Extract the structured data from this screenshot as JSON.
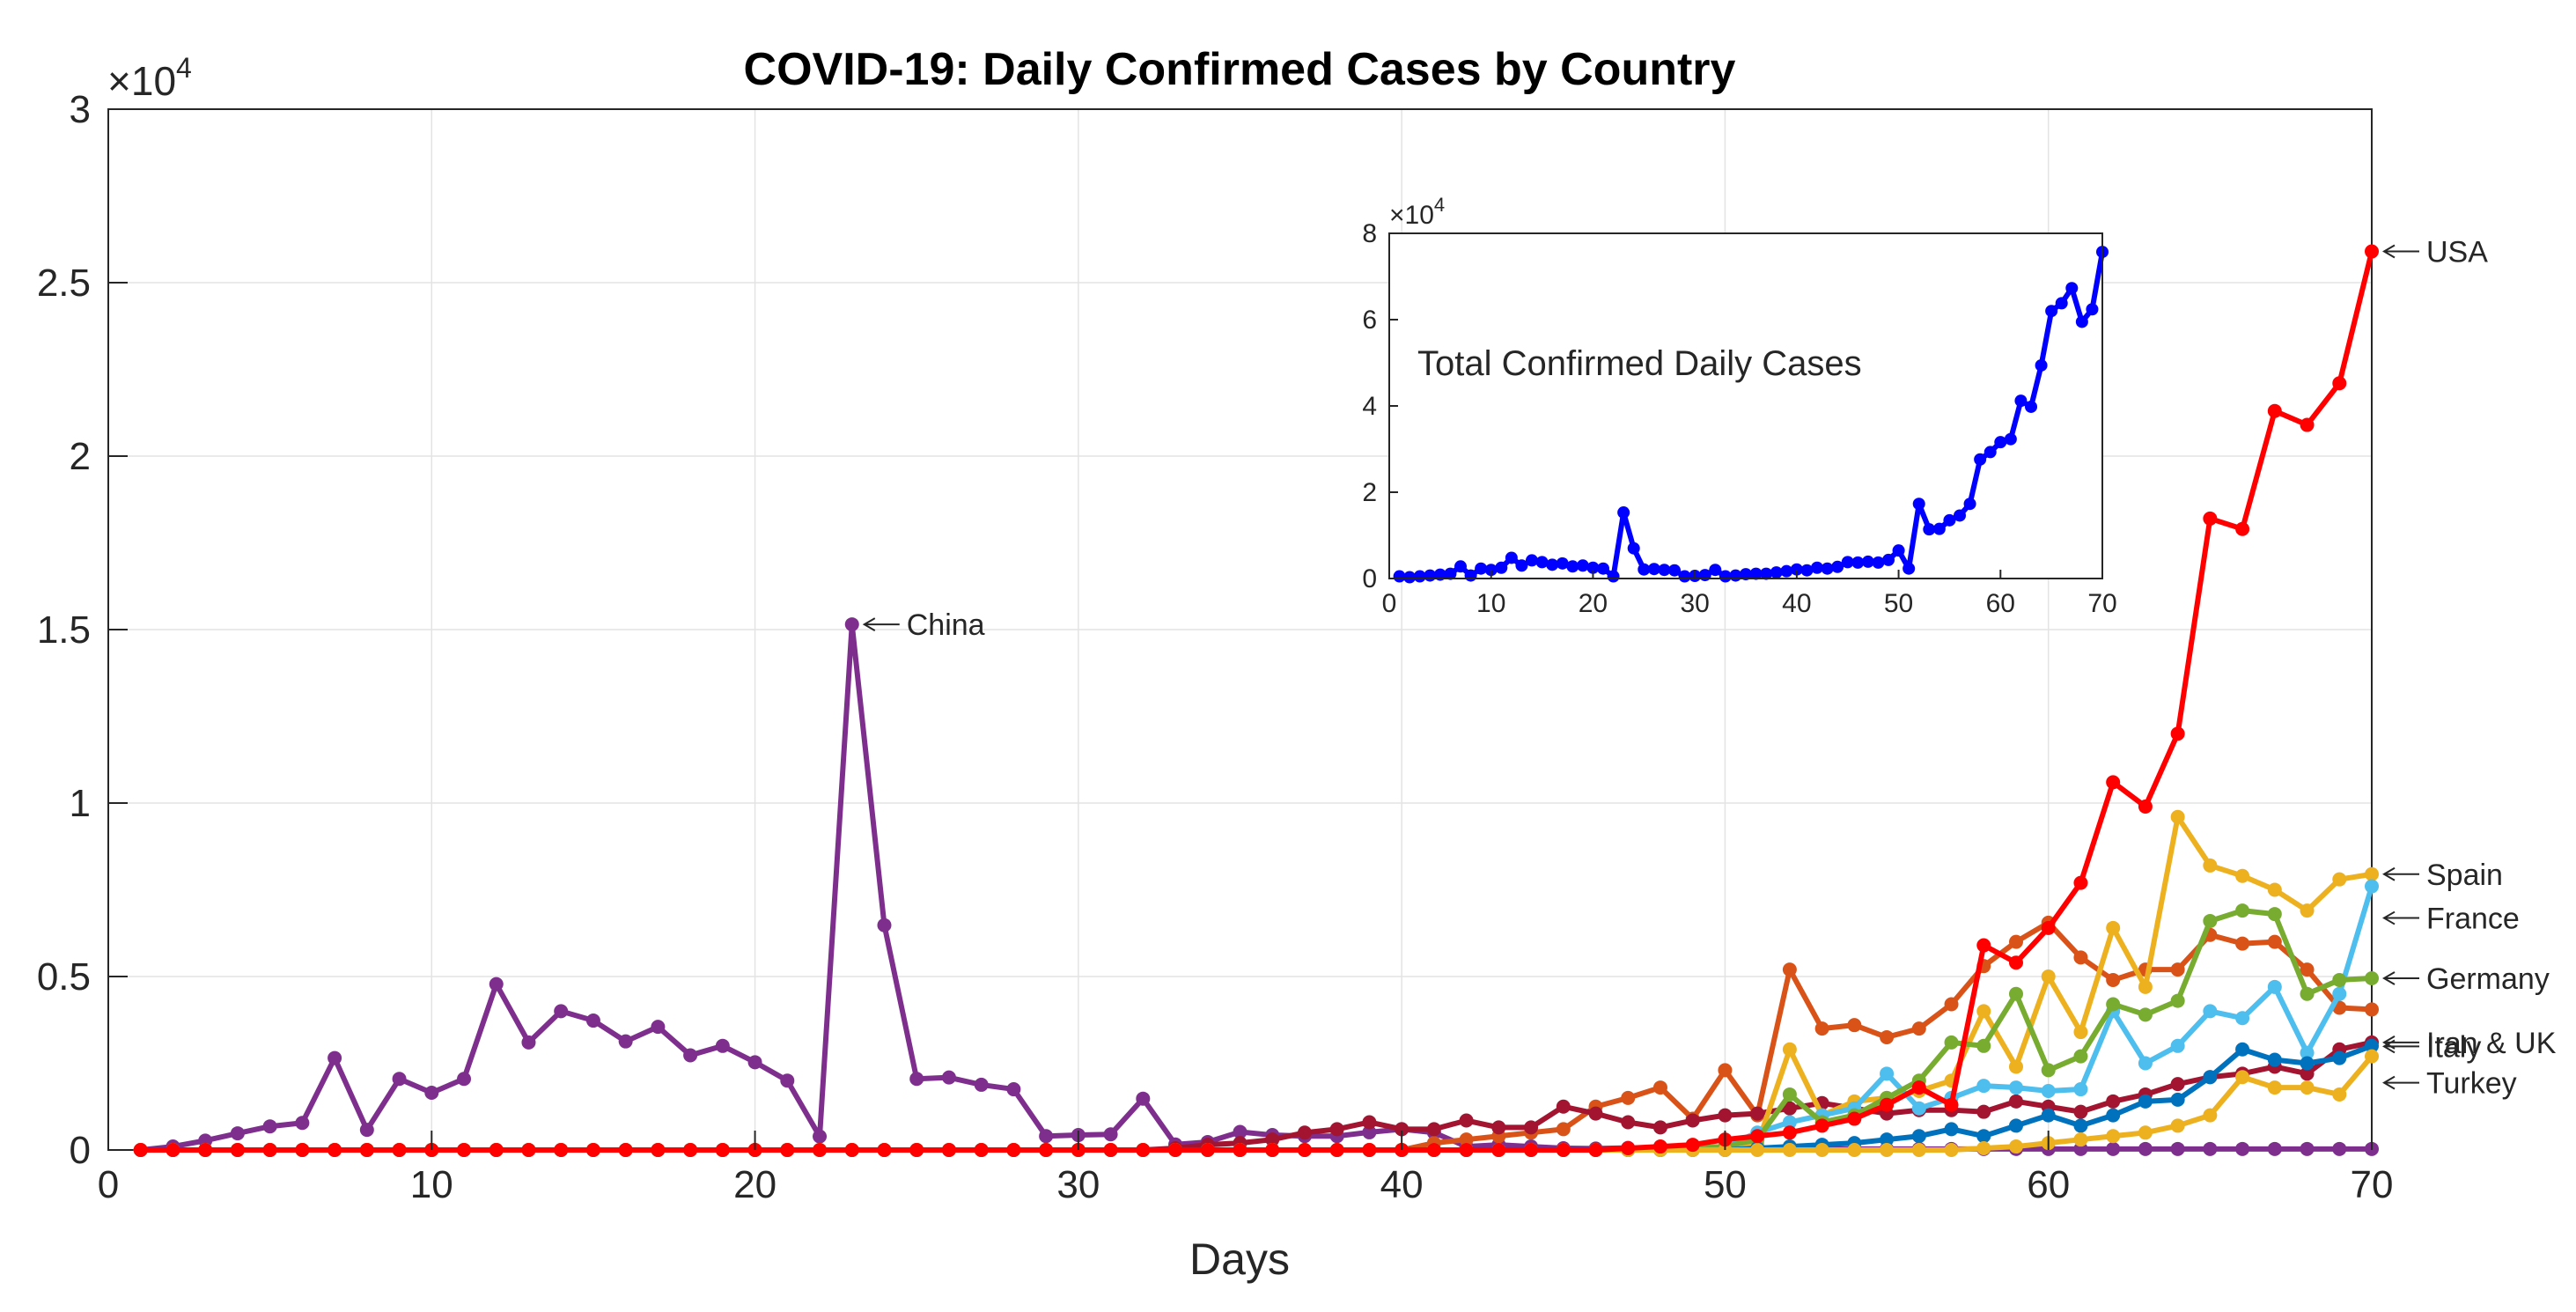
{
  "colors": {
    "China": "#7E2F8E",
    "USA": "#FF0000",
    "Spain": "#EDB120",
    "France": "#4DBEEE",
    "Germany": "#77AC30",
    "Italy": "#D95319",
    "Iran": "#A2142F",
    "UK": "#0072BD",
    "Turkey": "#EDB120",
    "inset": "#0000FF"
  },
  "chart_data": [
    {
      "type": "line",
      "title": "COVID-19: Daily Confirmed Cases by Country",
      "xlabel": "Days",
      "ylabel": "",
      "xlim": [
        0,
        70
      ],
      "ylim": [
        0,
        30000
      ],
      "x_ticks": [
        "0",
        "10",
        "20",
        "30",
        "40",
        "50",
        "60",
        "70"
      ],
      "y_ticks": [
        "0",
        "0.5",
        "1",
        "1.5",
        "2",
        "2.5",
        "3"
      ],
      "exponent_label": "×10",
      "exponent_power": "4",
      "grid": true,
      "x": [
        1,
        2,
        3,
        4,
        5,
        6,
        7,
        8,
        9,
        10,
        11,
        12,
        13,
        14,
        15,
        16,
        17,
        18,
        19,
        20,
        21,
        22,
        23,
        24,
        25,
        26,
        27,
        28,
        29,
        30,
        31,
        32,
        33,
        34,
        35,
        36,
        37,
        38,
        39,
        40,
        41,
        42,
        43,
        44,
        45,
        46,
        47,
        48,
        49,
        50,
        51,
        52,
        53,
        54,
        55,
        56,
        57,
        58,
        59,
        60,
        61,
        62,
        63,
        64,
        65,
        66,
        67,
        68,
        69,
        70
      ],
      "series": [
        {
          "name": "China",
          "label": "China",
          "color_key": "China",
          "annotate_at": 23,
          "values": [
            0,
            100,
            270,
            480,
            680,
            780,
            2650,
            580,
            2050,
            1650,
            2050,
            4780,
            3100,
            4000,
            3730,
            3130,
            3550,
            2730,
            3000,
            2530,
            2000,
            390,
            15150,
            6480,
            2050,
            2090,
            1880,
            1750,
            400,
            430,
            450,
            1480,
            160,
            230,
            520,
            430,
            400,
            400,
            510,
            600,
            500,
            100,
            150,
            100,
            50,
            40,
            60,
            50,
            30,
            30,
            30,
            30,
            30,
            30,
            30,
            30,
            30,
            30,
            30,
            30,
            30,
            30,
            30,
            30,
            30,
            30,
            30,
            30,
            30,
            30
          ]
        },
        {
          "name": "Italy",
          "label": "Italy",
          "color_key": "Italy",
          "annotate_at": 70,
          "values": [
            0,
            0,
            0,
            0,
            0,
            0,
            0,
            0,
            0,
            0,
            0,
            0,
            0,
            0,
            0,
            0,
            0,
            0,
            0,
            0,
            0,
            0,
            0,
            0,
            0,
            0,
            0,
            0,
            0,
            0,
            0,
            0,
            0,
            0,
            0,
            0,
            0,
            0,
            0,
            0,
            200,
            300,
            400,
            500,
            600,
            1250,
            1500,
            1800,
            900,
            2300,
            1000,
            5200,
            3500,
            3600,
            3250,
            3500,
            4200,
            5300,
            6000,
            6550,
            5550,
            4900,
            5200,
            5200,
            6200,
            5950,
            6000,
            5200,
            4100,
            4050
          ]
        },
        {
          "name": "Iran",
          "label": "Iran & UK",
          "color_key": "Iran",
          "annotate_at": 70,
          "values": [
            0,
            0,
            0,
            0,
            0,
            0,
            0,
            0,
            0,
            0,
            0,
            0,
            0,
            0,
            0,
            0,
            0,
            0,
            0,
            0,
            0,
            0,
            0,
            0,
            0,
            0,
            0,
            0,
            0,
            0,
            0,
            0,
            50,
            150,
            200,
            300,
            500,
            600,
            800,
            600,
            600,
            850,
            650,
            650,
            1250,
            1050,
            800,
            650,
            850,
            1000,
            1050,
            1200,
            1350,
            1200,
            1050,
            1150,
            1150,
            1100,
            1400,
            1250,
            1100,
            1400,
            1600,
            1900,
            2100,
            2200,
            2400,
            2200,
            2900,
            3100
          ]
        },
        {
          "name": "Spain",
          "label": "Spain",
          "color_key": "Spain",
          "annotate_at": 70,
          "values": [
            0,
            0,
            0,
            0,
            0,
            0,
            0,
            0,
            0,
            0,
            0,
            0,
            0,
            0,
            0,
            0,
            0,
            0,
            0,
            0,
            0,
            0,
            0,
            0,
            0,
            0,
            0,
            0,
            0,
            0,
            0,
            0,
            0,
            0,
            0,
            0,
            0,
            0,
            0,
            0,
            0,
            0,
            0,
            0,
            0,
            0,
            0,
            0,
            50,
            100,
            150,
            2900,
            1000,
            1400,
            1500,
            1700,
            2000,
            4000,
            2400,
            5000,
            3400,
            6400,
            4700,
            9600,
            8200,
            7900,
            7500,
            6900,
            7800,
            7950
          ]
        },
        {
          "name": "France",
          "label": "France",
          "color_key": "France",
          "annotate_at": 70,
          "values": [
            0,
            0,
            0,
            0,
            0,
            0,
            0,
            0,
            0,
            0,
            0,
            0,
            0,
            0,
            0,
            0,
            0,
            0,
            0,
            0,
            0,
            0,
            0,
            0,
            0,
            0,
            0,
            0,
            0,
            0,
            0,
            0,
            0,
            0,
            0,
            0,
            0,
            0,
            0,
            0,
            0,
            0,
            0,
            0,
            0,
            0,
            0,
            0,
            50,
            100,
            500,
            800,
            1000,
            1200,
            2200,
            1200,
            1500,
            1850,
            1800,
            1700,
            1750,
            4000,
            2500,
            3000,
            4000,
            3800,
            4700,
            2800,
            4500,
            7600
          ]
        },
        {
          "name": "Germany",
          "label": "Germany",
          "color_key": "Germany",
          "annotate_at": 70,
          "values": [
            0,
            0,
            0,
            0,
            0,
            0,
            0,
            0,
            0,
            0,
            0,
            0,
            0,
            0,
            0,
            0,
            0,
            0,
            0,
            0,
            0,
            0,
            0,
            0,
            0,
            0,
            0,
            0,
            0,
            0,
            0,
            0,
            0,
            0,
            0,
            0,
            0,
            0,
            0,
            0,
            0,
            0,
            0,
            0,
            0,
            0,
            0,
            0,
            50,
            100,
            300,
            1600,
            800,
            1000,
            1500,
            2000,
            3100,
            3000,
            4500,
            2300,
            2700,
            4200,
            3900,
            4300,
            6600,
            6900,
            6800,
            4500,
            4900,
            4950
          ]
        },
        {
          "name": "UK",
          "label": "",
          "color_key": "UK",
          "annotate_at": 70,
          "values": [
            0,
            0,
            0,
            0,
            0,
            0,
            0,
            0,
            0,
            0,
            0,
            0,
            0,
            0,
            0,
            0,
            0,
            0,
            0,
            0,
            0,
            0,
            0,
            0,
            0,
            0,
            0,
            0,
            0,
            0,
            0,
            0,
            0,
            0,
            0,
            0,
            0,
            0,
            0,
            0,
            0,
            0,
            0,
            0,
            0,
            0,
            0,
            0,
            0,
            0,
            50,
            100,
            150,
            200,
            300,
            400,
            600,
            400,
            700,
            1000,
            700,
            1000,
            1400,
            1450,
            2100,
            2900,
            2600,
            2500,
            2650,
            3000
          ]
        },
        {
          "name": "Turkey",
          "label": "Turkey",
          "color_key": "Turkey",
          "annotate_at": 70,
          "values": [
            0,
            0,
            0,
            0,
            0,
            0,
            0,
            0,
            0,
            0,
            0,
            0,
            0,
            0,
            0,
            0,
            0,
            0,
            0,
            0,
            0,
            0,
            0,
            0,
            0,
            0,
            0,
            0,
            0,
            0,
            0,
            0,
            0,
            0,
            0,
            0,
            0,
            0,
            0,
            0,
            0,
            0,
            0,
            0,
            0,
            0,
            0,
            0,
            0,
            0,
            0,
            0,
            0,
            0,
            0,
            0,
            0,
            50,
            100,
            200,
            300,
            400,
            500,
            700,
            1000,
            2100,
            1800,
            1800,
            1600,
            2700
          ]
        },
        {
          "name": "USA",
          "label": "USA",
          "color_key": "USA",
          "annotate_at": 70,
          "values": [
            0,
            0,
            0,
            0,
            0,
            0,
            0,
            0,
            0,
            0,
            0,
            0,
            0,
            0,
            0,
            0,
            0,
            0,
            0,
            0,
            0,
            0,
            0,
            0,
            0,
            0,
            0,
            0,
            0,
            0,
            0,
            0,
            0,
            0,
            0,
            0,
            0,
            0,
            0,
            0,
            0,
            0,
            0,
            0,
            0,
            0,
            50,
            100,
            150,
            300,
            400,
            500,
            700,
            900,
            1300,
            1800,
            1300,
            5900,
            5400,
            6400,
            7700,
            10600,
            9900,
            12000,
            18200,
            17900,
            21300,
            20900,
            22100,
            25900
          ]
        }
      ]
    },
    {
      "type": "line",
      "title": "Total Confirmed Daily Cases",
      "xlabel": "",
      "ylabel": "",
      "xlim": [
        0,
        70
      ],
      "ylim": [
        0,
        80000
      ],
      "x_ticks": [
        "0",
        "10",
        "20",
        "30",
        "40",
        "50",
        "60",
        "70"
      ],
      "y_ticks": [
        "0",
        "2",
        "4",
        "6",
        "8"
      ],
      "exponent_label": "×10",
      "exponent_power": "4",
      "grid": false,
      "x": [
        1,
        2,
        3,
        4,
        5,
        6,
        7,
        8,
        9,
        10,
        11,
        12,
        13,
        14,
        15,
        16,
        17,
        18,
        19,
        20,
        21,
        22,
        23,
        24,
        25,
        26,
        27,
        28,
        29,
        30,
        31,
        32,
        33,
        34,
        35,
        36,
        37,
        38,
        39,
        40,
        41,
        42,
        43,
        44,
        45,
        46,
        47,
        48,
        49,
        50,
        51,
        52,
        53,
        54,
        55,
        56,
        57,
        58,
        59,
        60,
        61,
        62,
        63,
        64,
        65,
        66,
        67,
        68,
        69,
        70
      ],
      "series": [
        {
          "name": "Total",
          "color_key": "inset",
          "values": [
            500,
            300,
            500,
            700,
            900,
            1100,
            2800,
            700,
            2300,
            2000,
            2500,
            4800,
            3000,
            4200,
            3800,
            3200,
            3500,
            2800,
            3000,
            2500,
            2300,
            500,
            15300,
            7000,
            2100,
            2200,
            2000,
            1900,
            500,
            600,
            800,
            2000,
            500,
            700,
            1000,
            1100,
            1100,
            1400,
            1700,
            2100,
            1900,
            2500,
            2300,
            2700,
            3800,
            3700,
            3900,
            3700,
            4300,
            6500,
            2300,
            17300,
            11400,
            11500,
            13500,
            14600,
            17300,
            27600,
            29300,
            31600,
            32300,
            41200,
            39800,
            49400,
            62000,
            63800,
            67300,
            59500,
            62400,
            75700
          ]
        }
      ]
    }
  ]
}
